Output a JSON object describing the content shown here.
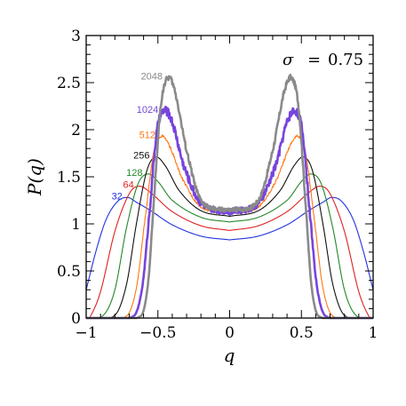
{
  "chart_data": {
    "type": "line",
    "xlabel": "q",
    "ylabel": "P(q)",
    "xlim": [
      -1,
      1
    ],
    "ylim": [
      0,
      3
    ],
    "x_ticks": [
      "−1",
      "−0.5",
      "0",
      "0.5",
      "1"
    ],
    "y_ticks": [
      "0",
      "0.5",
      "1",
      "1.5",
      "2",
      "2.5",
      "3"
    ],
    "annotation": {
      "symbol": "σ",
      "eq": "=",
      "value": "0.75"
    },
    "series": [
      {
        "name": "32",
        "color": "#2233dd",
        "peak_q": 0.71,
        "peak_p": 1.28,
        "center_p": 0.83,
        "edge_p": 0.3,
        "noise": 0.0,
        "points": [
          [
            0.0,
            0.83
          ],
          [
            0.2,
            0.87
          ],
          [
            0.4,
            0.99
          ],
          [
            0.55,
            1.14
          ],
          [
            0.65,
            1.23
          ],
          [
            0.71,
            1.28
          ],
          [
            0.78,
            1.24
          ],
          [
            0.86,
            1.05
          ],
          [
            0.93,
            0.72
          ],
          [
            1.0,
            0.3
          ]
        ]
      },
      {
        "name": "64",
        "color": "#dd2222",
        "peak_q": 0.63,
        "peak_p": 1.4,
        "center_p": 0.93,
        "edge_p": 0.0,
        "noise": 0.0,
        "points": [
          [
            0.0,
            0.93
          ],
          [
            0.2,
            0.98
          ],
          [
            0.4,
            1.13
          ],
          [
            0.55,
            1.33
          ],
          [
            0.63,
            1.4
          ],
          [
            0.7,
            1.32
          ],
          [
            0.8,
            0.92
          ],
          [
            0.9,
            0.28
          ],
          [
            0.97,
            0.02
          ],
          [
            1.0,
            0.0
          ]
        ]
      },
      {
        "name": "128",
        "color": "#22882a",
        "peak_q": 0.57,
        "peak_p": 1.53,
        "center_p": 1.02,
        "edge_p": 0.0,
        "noise": 0.0,
        "points": [
          [
            0.0,
            1.02
          ],
          [
            0.2,
            1.07
          ],
          [
            0.4,
            1.25
          ],
          [
            0.5,
            1.45
          ],
          [
            0.57,
            1.53
          ],
          [
            0.64,
            1.42
          ],
          [
            0.72,
            0.95
          ],
          [
            0.8,
            0.3
          ],
          [
            0.88,
            0.03
          ],
          [
            1.0,
            0.0
          ]
        ]
      },
      {
        "name": "256",
        "color": "#111111",
        "peak_q": 0.52,
        "peak_p": 1.71,
        "center_p": 1.08,
        "edge_p": 0.0,
        "noise": 0.0,
        "points": [
          [
            0.0,
            1.08
          ],
          [
            0.2,
            1.14
          ],
          [
            0.35,
            1.35
          ],
          [
            0.45,
            1.62
          ],
          [
            0.52,
            1.71
          ],
          [
            0.58,
            1.55
          ],
          [
            0.65,
            1.0
          ],
          [
            0.72,
            0.35
          ],
          [
            0.8,
            0.03
          ],
          [
            1.0,
            0.0
          ]
        ]
      },
      {
        "name": "512",
        "color": "#ff7711",
        "peak_q": 0.48,
        "peak_p": 1.93,
        "center_p": 1.11,
        "edge_p": 0.0,
        "noise": 0.015,
        "points": [
          [
            0.0,
            1.11
          ],
          [
            0.2,
            1.18
          ],
          [
            0.33,
            1.48
          ],
          [
            0.42,
            1.83
          ],
          [
            0.48,
            1.93
          ],
          [
            0.53,
            1.75
          ],
          [
            0.59,
            1.05
          ],
          [
            0.65,
            0.32
          ],
          [
            0.72,
            0.02
          ],
          [
            1.0,
            0.0
          ]
        ]
      },
      {
        "name": "1024",
        "color": "#7744dd",
        "peak_q": 0.46,
        "peak_p": 2.2,
        "center_p": 1.13,
        "edge_p": 0.0,
        "noise": 0.045,
        "points": [
          [
            0.0,
            1.13
          ],
          [
            0.2,
            1.22
          ],
          [
            0.32,
            1.62
          ],
          [
            0.4,
            2.08
          ],
          [
            0.46,
            2.2
          ],
          [
            0.51,
            1.95
          ],
          [
            0.56,
            1.1
          ],
          [
            0.61,
            0.32
          ],
          [
            0.67,
            0.02
          ],
          [
            1.0,
            0.0
          ]
        ]
      },
      {
        "name": "2048",
        "color": "#8a8a8a",
        "peak_q": 0.43,
        "peak_p": 2.55,
        "center_p": 1.14,
        "edge_p": 0.0,
        "noise": 0.03,
        "points": [
          [
            0.0,
            1.14
          ],
          [
            0.2,
            1.25
          ],
          [
            0.3,
            1.78
          ],
          [
            0.38,
            2.4
          ],
          [
            0.43,
            2.55
          ],
          [
            0.48,
            2.25
          ],
          [
            0.53,
            1.2
          ],
          [
            0.57,
            0.35
          ],
          [
            0.62,
            0.02
          ],
          [
            1.0,
            0.0
          ]
        ]
      }
    ]
  }
}
